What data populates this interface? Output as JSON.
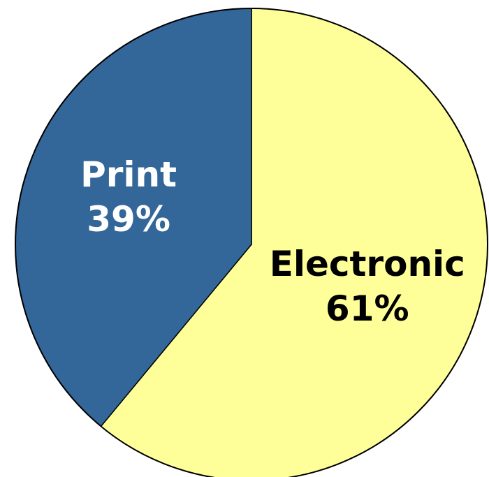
{
  "chart_data": {
    "type": "pie",
    "start": "12 o'clock",
    "direction": "clockwise",
    "slices": [
      {
        "label": "Electronic",
        "value": 61,
        "value_label": "61%",
        "color": "#FFFF99",
        "text_color": "#000000"
      },
      {
        "label": "Print",
        "value": 39,
        "value_label": "39%",
        "color": "#336699",
        "text_color": "#FFFFFF"
      }
    ],
    "outline_color": "#000000"
  }
}
